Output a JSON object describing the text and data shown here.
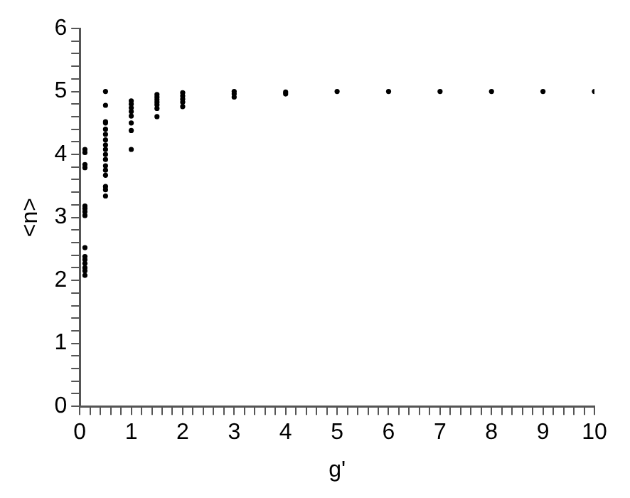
{
  "chart_data": {
    "type": "scatter",
    "xlabel": "g'",
    "ylabel": "<n>",
    "marker": "circle",
    "grid": false,
    "legend": false,
    "xlim": [
      0,
      10
    ],
    "ylim": [
      0,
      6
    ],
    "xticks": [
      0,
      {
        "value": 0.2,
        "label": null
      },
      {
        "value": 0.4,
        "label": null
      },
      {
        "value": 0.6,
        "label": null
      },
      {
        "value": 0.8,
        "label": null
      },
      1,
      {
        "value": 1.2,
        "label": null
      },
      {
        "value": 1.4,
        "label": null
      },
      {
        "value": 1.6,
        "label": null
      },
      {
        "value": 1.8,
        "label": null
      },
      2,
      {
        "value": 2.2,
        "label": null
      },
      {
        "value": 2.4,
        "label": null
      },
      {
        "value": 2.6,
        "label": null
      },
      {
        "value": 2.8,
        "label": null
      },
      3,
      {
        "value": 3.2,
        "label": null
      },
      {
        "value": 3.4,
        "label": null
      },
      {
        "value": 3.6,
        "label": null
      },
      {
        "value": 3.8,
        "label": null
      },
      4,
      {
        "value": 4.2,
        "label": null
      },
      {
        "value": 4.4,
        "label": null
      },
      {
        "value": 4.6,
        "label": null
      },
      {
        "value": 4.8,
        "label": null
      },
      5,
      {
        "value": 5.2,
        "label": null
      },
      {
        "value": 5.4,
        "label": null
      },
      {
        "value": 5.6,
        "label": null
      },
      {
        "value": 5.8,
        "label": null
      },
      6,
      {
        "value": 6.2,
        "label": null
      },
      {
        "value": 6.4,
        "label": null
      },
      {
        "value": 6.6,
        "label": null
      },
      {
        "value": 6.8,
        "label": null
      },
      7,
      {
        "value": 7.2,
        "label": null
      },
      {
        "value": 7.4,
        "label": null
      },
      {
        "value": 7.6,
        "label": null
      },
      {
        "value": 7.8,
        "label": null
      },
      8,
      {
        "value": 8.2,
        "label": null
      },
      {
        "value": 8.4,
        "label": null
      },
      {
        "value": 8.6,
        "label": null
      },
      {
        "value": 8.8,
        "label": null
      },
      9,
      {
        "value": 9.2,
        "label": null
      },
      {
        "value": 9.4,
        "label": null
      },
      {
        "value": 9.6,
        "label": null
      },
      {
        "value": 9.8,
        "label": null
      },
      10
    ],
    "yticks": [
      0,
      {
        "value": 0.2,
        "label": null
      },
      {
        "value": 0.4,
        "label": null
      },
      {
        "value": 0.6,
        "label": null
      },
      {
        "value": 0.8,
        "label": null
      },
      1,
      {
        "value": 1.2,
        "label": null
      },
      {
        "value": 1.4,
        "label": null
      },
      {
        "value": 1.6,
        "label": null
      },
      {
        "value": 1.8,
        "label": null
      },
      2,
      {
        "value": 2.2,
        "label": null
      },
      {
        "value": 2.4,
        "label": null
      },
      {
        "value": 2.6,
        "label": null
      },
      {
        "value": 2.8,
        "label": null
      },
      3,
      {
        "value": 3.2,
        "label": null
      },
      {
        "value": 3.4,
        "label": null
      },
      {
        "value": 3.6,
        "label": null
      },
      {
        "value": 3.8,
        "label": null
      },
      4,
      {
        "value": 4.2,
        "label": null
      },
      {
        "value": 4.4,
        "label": null
      },
      {
        "value": 4.6,
        "label": null
      },
      {
        "value": 4.8,
        "label": null
      },
      5,
      {
        "value": 5.2,
        "label": null
      },
      {
        "value": 5.4,
        "label": null
      },
      {
        "value": 5.6,
        "label": null
      },
      {
        "value": 5.8,
        "label": null
      },
      6
    ],
    "series": [
      {
        "color": "#000000",
        "x": [
          0.1,
          0.1,
          0.1,
          0.1,
          0.1,
          0.1,
          0.1,
          0.1,
          0.1,
          0.1,
          0.1,
          0.1,
          0.1,
          0.1,
          0.1,
          0.5,
          0.5,
          0.5,
          0.5,
          0.5,
          0.5,
          0.5,
          0.5,
          0.5,
          0.5,
          0.5,
          0.5,
          0.5,
          0.5,
          0.5,
          0.5,
          0.5,
          1,
          1,
          1,
          1,
          1,
          1,
          1,
          1,
          1.5,
          1.5,
          1.5,
          1.5,
          1.5,
          1.5,
          1.5,
          2,
          2,
          2,
          2,
          2,
          3,
          3,
          3,
          4,
          4,
          5,
          6,
          7,
          8,
          9,
          10
        ],
        "values": [
          4.08,
          4.03,
          3.84,
          3.79,
          3.18,
          3.14,
          3.09,
          3.03,
          2.52,
          2.38,
          2.33,
          2.27,
          2.2,
          2.15,
          2.08,
          5.0,
          4.78,
          4.52,
          4.5,
          4.4,
          4.32,
          4.23,
          4.15,
          4.08,
          4.0,
          3.92,
          3.82,
          3.75,
          3.67,
          3.49,
          3.44,
          3.34,
          4.85,
          4.8,
          4.74,
          4.68,
          4.61,
          4.5,
          4.38,
          4.08,
          4.95,
          4.91,
          4.87,
          4.83,
          4.79,
          4.73,
          4.6,
          4.98,
          4.93,
          4.88,
          4.83,
          4.76,
          5.0,
          4.96,
          4.91,
          4.99,
          4.96,
          5.0,
          5.0,
          5.0,
          5.0,
          5.0,
          5.0
        ]
      }
    ]
  }
}
